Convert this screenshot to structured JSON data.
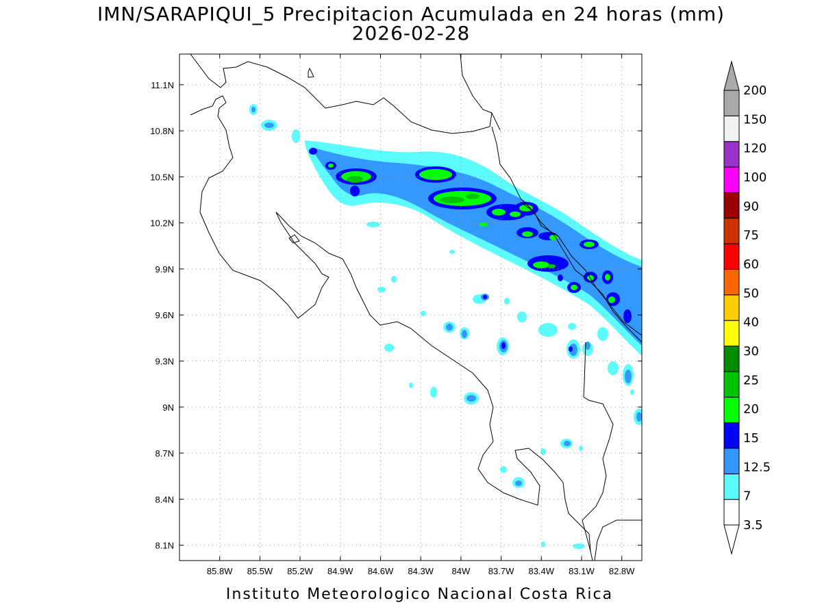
{
  "title": {
    "line1": "IMN/SARAPIQUI_5 Precipitacion Acumulada en 24 horas (mm)",
    "line2": "2026-02-28"
  },
  "footer": "Instituto Meteorologico Nacional Costa Rica",
  "map": {
    "lon_range": [
      -86.1,
      -82.65
    ],
    "lat_range": [
      8.0,
      11.3
    ],
    "x_ticks": [
      {
        "value": -85.8,
        "label": "85.8W"
      },
      {
        "value": -85.5,
        "label": "85.5W"
      },
      {
        "value": -85.2,
        "label": "85.2W"
      },
      {
        "value": -84.9,
        "label": "84.9W"
      },
      {
        "value": -84.6,
        "label": "84.6W"
      },
      {
        "value": -84.3,
        "label": "84.3W"
      },
      {
        "value": -84.0,
        "label": "84W"
      },
      {
        "value": -83.7,
        "label": "83.7W"
      },
      {
        "value": -83.4,
        "label": "83.4W"
      },
      {
        "value": -83.1,
        "label": "83.1W"
      },
      {
        "value": -82.8,
        "label": "82.8W"
      }
    ],
    "y_ticks": [
      {
        "value": 11.1,
        "label": "11.1N"
      },
      {
        "value": 10.8,
        "label": "10.8N"
      },
      {
        "value": 10.5,
        "label": "10.5N"
      },
      {
        "value": 10.2,
        "label": "10.2N"
      },
      {
        "value": 9.9,
        "label": "9.9N"
      },
      {
        "value": 9.6,
        "label": "9.6N"
      },
      {
        "value": 9.3,
        "label": "9.3N"
      },
      {
        "value": 9.0,
        "label": "9N"
      },
      {
        "value": 8.7,
        "label": "8.7N"
      },
      {
        "value": 8.4,
        "label": "8.4N"
      },
      {
        "value": 8.1,
        "label": "8.1N"
      }
    ],
    "grid": "dotted"
  },
  "colorbar": {
    "levels": [
      "3.5",
      "7",
      "12.5",
      "15",
      "20",
      "25",
      "30",
      "40",
      "50",
      "60",
      "75",
      "90",
      "100",
      "120",
      "150",
      "200"
    ],
    "colors": [
      "#ffffff",
      "#5cfcfc",
      "#3399ff",
      "#0000ff",
      "#00ff00",
      "#00c400",
      "#008c00",
      "#ffff00",
      "#ffcc00",
      "#ff6600",
      "#ff0000",
      "#cc3300",
      "#990000",
      "#ff00ff",
      "#9933cc",
      "#f2f2f2",
      "#aaaaaa"
    ],
    "top_arrow_color": "#aaaaaa",
    "bottom_arrow_color": "#ffffff"
  }
}
